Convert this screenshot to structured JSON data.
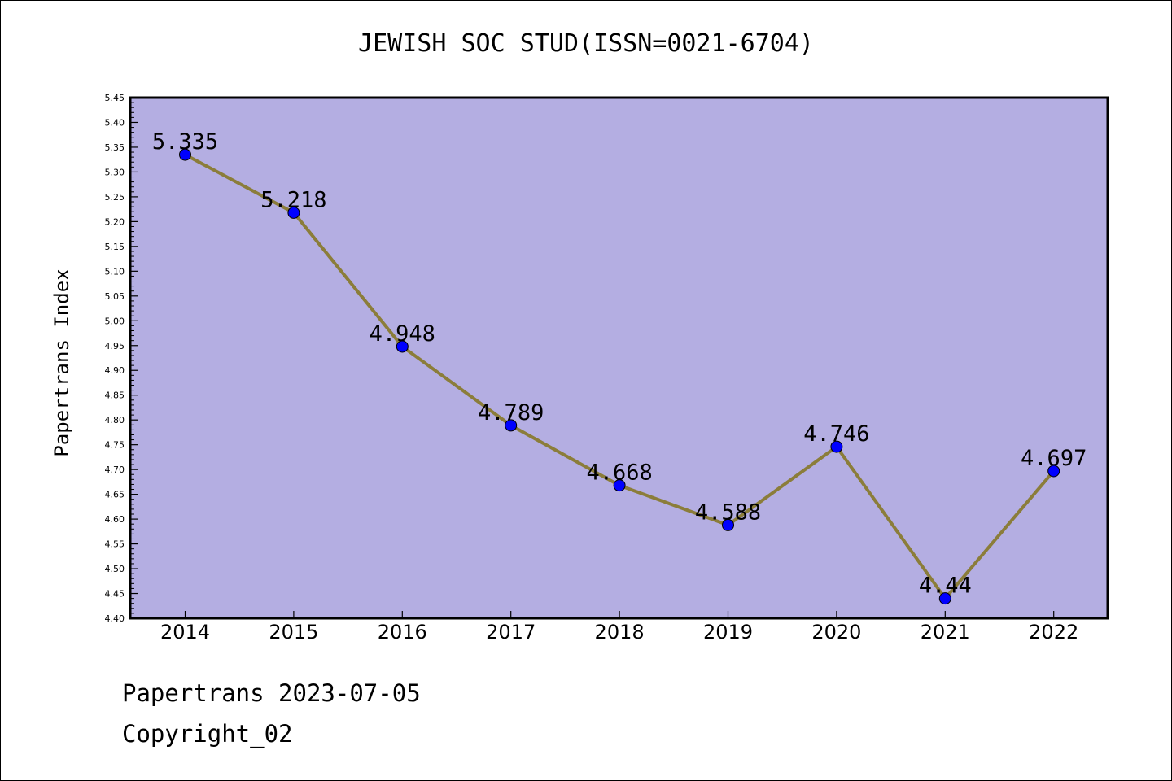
{
  "title": "JEWISH SOC STUD(ISSN=0021-6704)",
  "footer": {
    "line1": "Papertrans 2023-07-05",
    "line2": "Copyright_02"
  },
  "colors": {
    "plot_background": "#b4aee2",
    "line": "#8b7d3a",
    "marker": "#0000ff"
  },
  "chart_data": {
    "type": "line",
    "title": "JEWISH SOC STUD(ISSN=0021-6704)",
    "xlabel": "",
    "ylabel": "Papertrans Index",
    "ylim": [
      4.4,
      5.45
    ],
    "yticks": [
      "4.40",
      "4.45",
      "4.50",
      "4.55",
      "4.60",
      "4.65",
      "4.70",
      "4.75",
      "4.80",
      "4.85",
      "4.90",
      "4.95",
      "5.00",
      "5.05",
      "5.10",
      "5.15",
      "5.20",
      "5.25",
      "5.30",
      "5.35",
      "5.40",
      "5.45"
    ],
    "grid": false,
    "categories": [
      "2014",
      "2015",
      "2016",
      "2017",
      "2018",
      "2019",
      "2020",
      "2021",
      "2022"
    ],
    "series": [
      {
        "values": [
          5.335,
          5.218,
          4.948,
          4.789,
          4.668,
          4.588,
          4.746,
          4.44,
          4.697
        ],
        "labels": [
          "5.335",
          "5.218",
          "4.948",
          "4.789",
          "4.668",
          "4.588",
          "4.746",
          "4.44",
          "4.697"
        ]
      }
    ]
  }
}
